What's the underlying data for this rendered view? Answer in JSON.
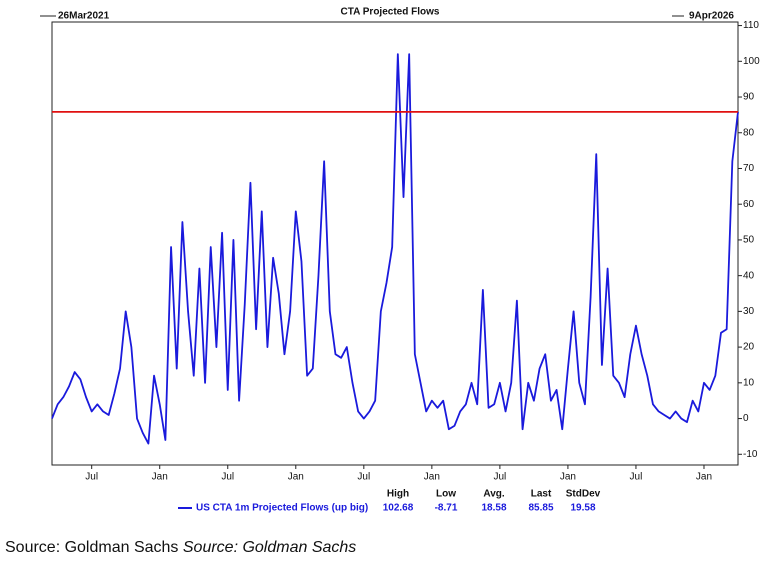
{
  "chart_data": {
    "type": "line",
    "title": "CTA Projected Flows",
    "start_label": "26Mar2021",
    "end_label": "9Apr2026",
    "categories": [
      null,
      null,
      null,
      null,
      null,
      null,
      null,
      "Jul",
      null,
      null,
      null,
      null,
      null,
      null,
      null,
      null,
      null,
      null,
      null,
      "Jan",
      null,
      null,
      null,
      null,
      null,
      null,
      null,
      null,
      null,
      null,
      null,
      "Jul",
      null,
      null,
      null,
      null,
      null,
      null,
      null,
      null,
      null,
      null,
      null,
      "Jan",
      null,
      null,
      null,
      null,
      null,
      null,
      null,
      null,
      null,
      null,
      null,
      "Jul",
      null,
      null,
      null,
      null,
      null,
      null,
      null,
      null,
      null,
      null,
      null,
      "Jan",
      null,
      null,
      null,
      null,
      null,
      null,
      null,
      null,
      null,
      null,
      null,
      "Jul",
      null,
      null,
      null,
      null,
      null,
      null,
      null,
      null,
      null,
      null,
      null,
      "Jan",
      null,
      null,
      null,
      null,
      null,
      null,
      null,
      null,
      null,
      null,
      null,
      "Jul",
      null,
      null,
      null,
      null,
      null,
      null,
      null,
      null,
      null,
      null,
      null,
      "Jan",
      null,
      null,
      null,
      null,
      null,
      null
    ],
    "series": [
      {
        "name": "US CTA 1m Projected Flows (up big)",
        "color": "#1a1adc",
        "values": [
          0,
          4,
          6,
          9,
          13,
          11,
          6,
          2,
          4,
          2,
          1,
          7,
          14,
          30,
          20,
          0,
          -4,
          -7,
          12,
          4,
          -6,
          48,
          14,
          55,
          30,
          12,
          42,
          10,
          48,
          20,
          52,
          8,
          50,
          5,
          32,
          66,
          25,
          58,
          20,
          45,
          35,
          18,
          30,
          58,
          44,
          12,
          14,
          40,
          72,
          30,
          18,
          17,
          20,
          10,
          2,
          0,
          2,
          5,
          30,
          38,
          48,
          102,
          62,
          102,
          18,
          10,
          2,
          5,
          3,
          5,
          -3,
          -2,
          2,
          4,
          10,
          4,
          36,
          3,
          4,
          10,
          2,
          10,
          33,
          -3,
          10,
          5,
          14,
          18,
          5,
          8,
          -3,
          14,
          30,
          10,
          4,
          34,
          74,
          15,
          42,
          12,
          10,
          6,
          18,
          26,
          18,
          12,
          4,
          2,
          1,
          0,
          2,
          0,
          -1,
          5,
          2,
          10,
          8,
          12,
          24,
          25,
          72,
          85.85
        ]
      }
    ],
    "hline": {
      "value": 85.85,
      "color": "#e01010"
    },
    "stats": {
      "labels": [
        "High",
        "Low",
        "Avg.",
        "Last",
        "StdDev"
      ],
      "values": [
        102.68,
        -8.71,
        18.58,
        85.85,
        19.58
      ]
    },
    "ylim": [
      -13,
      111
    ],
    "yticks": [
      -10,
      0,
      10,
      20,
      30,
      40,
      50,
      60,
      70,
      80,
      90,
      100,
      110
    ],
    "source": "Source: Goldman Sachs",
    "source_italic": "Source: Goldman Sachs"
  }
}
